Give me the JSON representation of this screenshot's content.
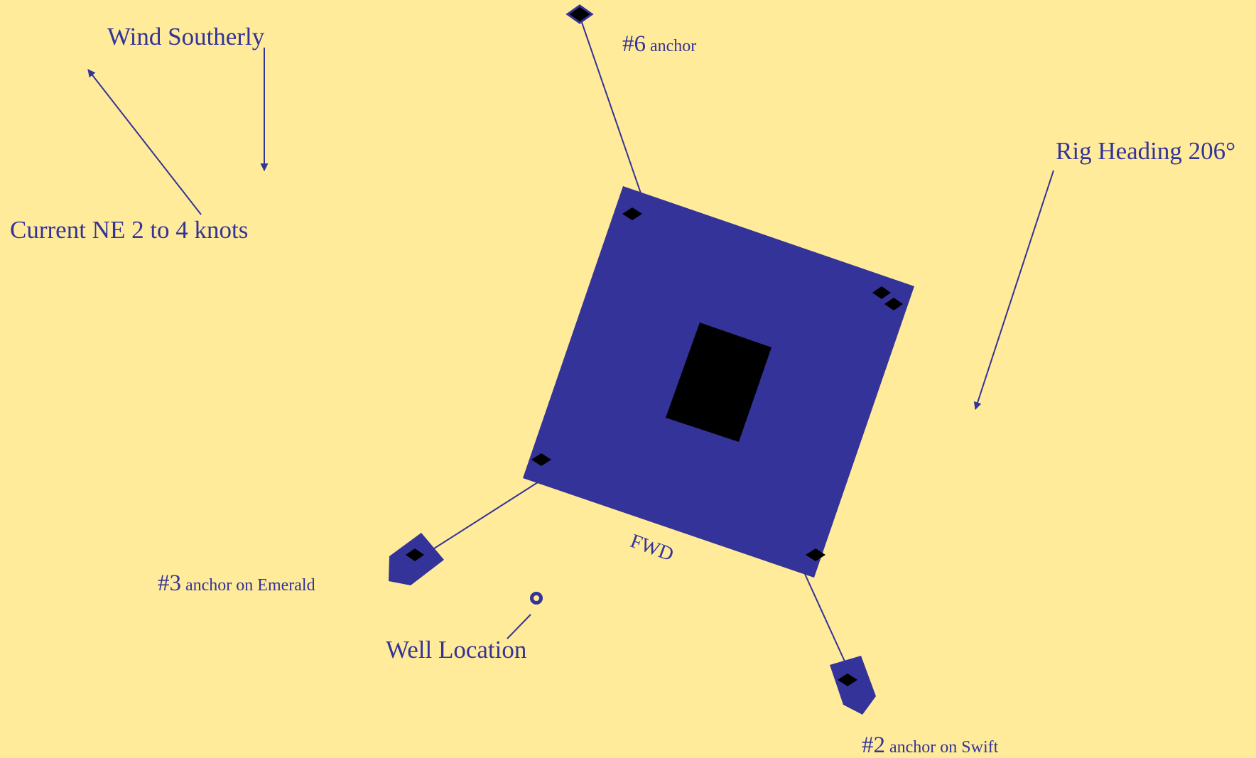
{
  "labels": {
    "wind": "Wind Southerly",
    "current": "Current NE 2 to 4 knots",
    "rig_heading": "Rig Heading 206°",
    "well_location": "Well Location",
    "fwd": "FWD",
    "anchor6": {
      "number": "#6",
      "text": " anchor"
    },
    "anchor3": {
      "number": "#3",
      "text": " anchor on Emerald"
    },
    "anchor2": {
      "number": "#2",
      "text": " anchor on Swift"
    }
  },
  "colors": {
    "background": "#FFEB99",
    "rig": "#333399",
    "text": "#333399",
    "moonpool": "#000000",
    "markers": "#000000"
  },
  "icons": {
    "wind_arrow": "arrow-down-icon",
    "current_arrow": "arrow-up-left-icon",
    "heading_arrow": "arrow-down-left-icon",
    "well": "well-circle-icon",
    "anchor": "diamond-icon",
    "vessel": "boat-icon"
  }
}
